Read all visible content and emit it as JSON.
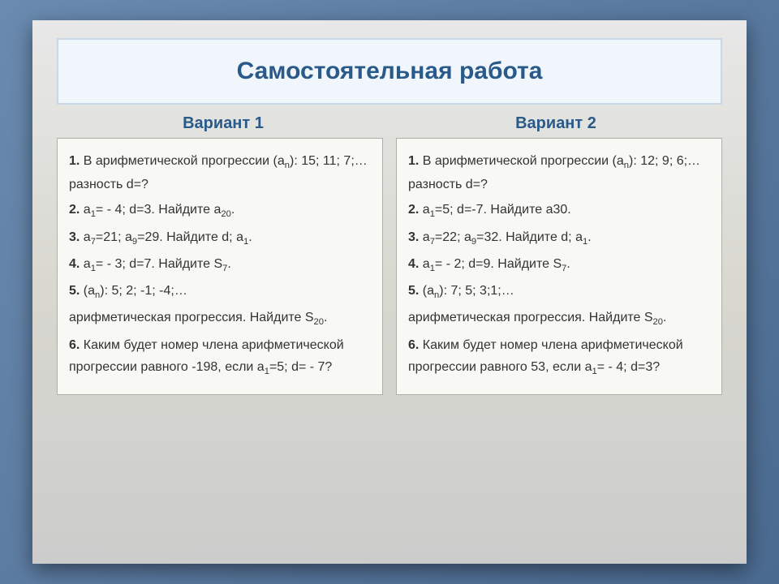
{
  "title": "Самостоятельная работа",
  "variants": [
    {
      "heading": "Вариант 1",
      "q1a": "1.",
      "q1b": " В арифметической прогрессии (a",
      "q1sub": "n",
      "q1c": "): 15; 11; 7;… разность d=?",
      "q2a": "2.",
      "q2b": " a",
      "q2sub": "1",
      "q2c": "= - 4; d=3. Найдите a",
      "q2sub2": "20",
      "q2d": ".",
      "q3a": "3.",
      "q3b": " a",
      "q3sub": "7",
      "q3c": "=21; a",
      "q3sub2": "9",
      "q3d": "=29. Найдите d; a",
      "q3sub3": "1",
      "q3e": ".",
      "q4a": "4.",
      "q4b": " a",
      "q4sub": "1",
      "q4c": "= - 3; d=7. Найдите S",
      "q4sub2": "7",
      "q4d": ".",
      "q5a": "5.",
      "q5b": " (a",
      "q5sub": "n",
      "q5c": "): 5; 2; -1; -4;…",
      "q5line2a": "арифметическая прогрессия. Найдите S",
      "q5line2sub": "20",
      "q5line2b": ".",
      "q6a": "6.",
      "q6b": " Каким будет номер члена арифметической прогрессии равного  -198, если a",
      "q6sub": "1",
      "q6c": "=5; d= - 7?"
    },
    {
      "heading": "Вариант 2",
      "q1a": "1.",
      "q1b": " В арифметической прогрессии (a",
      "q1sub": "n",
      "q1c": "): 12; 9; 6;… разность d=?",
      "q2a": "2.",
      "q2b": " a",
      "q2sub": "1",
      "q2c": "=5; d=-7. Найдите a30.",
      "q2sub2": "",
      "q2d": "",
      "q3a": "3.",
      "q3b": " a",
      "q3sub": "7",
      "q3c": "=22; a",
      "q3sub2": "9",
      "q3d": "=32. Найдите d; a",
      "q3sub3": "1",
      "q3e": ".",
      "q4a": "4.",
      "q4b": " a",
      "q4sub": "1",
      "q4c": "= - 2; d=9. Найдите S",
      "q4sub2": "7",
      "q4d": ".",
      "q5a": "5.",
      "q5b": " (a",
      "q5sub": "n",
      "q5c": "): 7; 5; 3;1;…",
      "q5line2a": "арифметическая прогрессия. Найдите S",
      "q5line2sub": "20",
      "q5line2b": ".",
      "q6a": "6.",
      "q6b": " Каким будет номер члена арифметической прогрессии равного 53, если  a",
      "q6sub": "1",
      "q6c": "= - 4; d=3?"
    }
  ]
}
